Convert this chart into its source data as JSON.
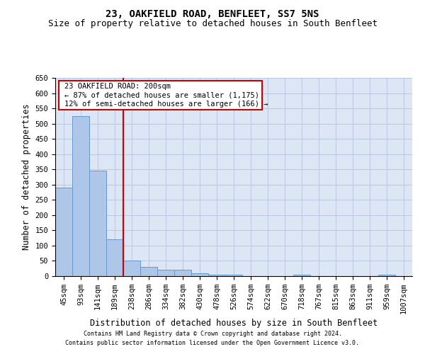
{
  "title": "23, OAKFIELD ROAD, BENFLEET, SS7 5NS",
  "subtitle": "Size of property relative to detached houses in South Benfleet",
  "xlabel": "Distribution of detached houses by size in South Benfleet",
  "ylabel": "Number of detached properties",
  "footnote1": "Contains HM Land Registry data © Crown copyright and database right 2024.",
  "footnote2": "Contains public sector information licensed under the Open Government Licence v3.0.",
  "annotation_line1": "23 OAKFIELD ROAD: 200sqm",
  "annotation_line2": "← 87% of detached houses are smaller (1,175)",
  "annotation_line3": "12% of semi-detached houses are larger (166) →",
  "bar_color": "#aec6e8",
  "bar_edge_color": "#6699cc",
  "vline_color": "#cc0000",
  "vline_x": 3.5,
  "background_color": "#dce6f5",
  "ylim": [
    0,
    650
  ],
  "categories": [
    "45sqm",
    "93sqm",
    "141sqm",
    "189sqm",
    "238sqm",
    "286sqm",
    "334sqm",
    "382sqm",
    "430sqm",
    "478sqm",
    "526sqm",
    "574sqm",
    "622sqm",
    "670sqm",
    "718sqm",
    "767sqm",
    "815sqm",
    "863sqm",
    "911sqm",
    "959sqm",
    "1007sqm"
  ],
  "values": [
    290,
    525,
    345,
    120,
    50,
    30,
    20,
    20,
    10,
    5,
    5,
    0,
    0,
    0,
    5,
    0,
    0,
    0,
    0,
    5,
    0
  ],
  "yticks": [
    0,
    50,
    100,
    150,
    200,
    250,
    300,
    350,
    400,
    450,
    500,
    550,
    600,
    650
  ],
  "grid_color": "#b8c8e0",
  "title_fontsize": 10,
  "subtitle_fontsize": 9,
  "axis_label_fontsize": 8.5,
  "tick_fontsize": 7.5,
  "annot_fontsize": 7.5,
  "footnote_fontsize": 6
}
